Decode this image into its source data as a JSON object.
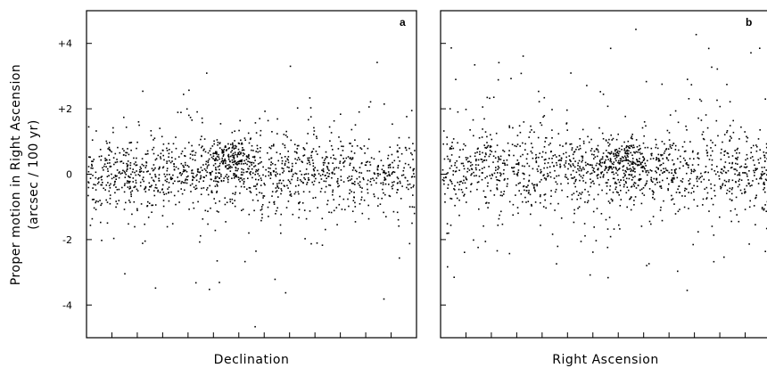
{
  "chart_data": [
    {
      "type": "scatter",
      "panel_label": "a",
      "xlabel": "Declination",
      "ylabel": "Proper motion in Right Ascension",
      "ylabel_units": "(arcsec / 100 yr)",
      "ylim": [
        -5,
        5
      ],
      "xlim": [
        0,
        1
      ],
      "yticks": [
        -4,
        -2,
        0,
        2,
        4
      ],
      "ytick_labels": [
        "-4",
        "-2",
        "0",
        "+2",
        "+4"
      ],
      "x_minor_ticks": 13,
      "grid": false,
      "point_color": "#000000",
      "distribution": {
        "n_points": 1500,
        "core_y_mean": 0.05,
        "core_y_sd": 0.55,
        "halo_y_sd": 1.5,
        "cluster": {
          "x": 0.43,
          "y": 0.5,
          "x_sd": 0.04,
          "y_sd": 0.25,
          "fraction": 0.12
        }
      }
    },
    {
      "type": "scatter",
      "panel_label": "b",
      "xlabel": "Right Ascension",
      "ylabel": "",
      "ylim": [
        -5,
        5
      ],
      "xlim": [
        0,
        1
      ],
      "x_minor_ticks": 13,
      "grid": false,
      "point_color": "#000000",
      "distribution": {
        "n_points": 1500,
        "core_y_mean": 0.1,
        "core_y_sd": 0.6,
        "halo_y_sd": 1.5,
        "cluster": {
          "x": 0.55,
          "y": 0.45,
          "x_sd": 0.05,
          "y_sd": 0.28,
          "fraction": 0.12
        }
      }
    }
  ]
}
